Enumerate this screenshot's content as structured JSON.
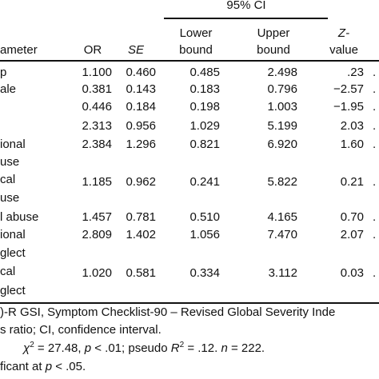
{
  "table": {
    "ci_group_label": "95% CI",
    "headers": {
      "parameter": "ameter",
      "or": "OR",
      "se": "SE",
      "lower_line1": "Lower",
      "lower_line2": "bound",
      "upper_line1": "Upper",
      "upper_line2": "bound",
      "z_line1": "Z-",
      "z_line2": "value"
    },
    "rows": [
      {
        "label": "p",
        "label2": "",
        "or": "1.100",
        "se": "0.460",
        "lower": "0.485",
        "upper": "2.498",
        "z": ".23",
        "extra": "."
      },
      {
        "label": "ale",
        "label2": "",
        "or": "0.381",
        "se": "0.143",
        "lower": "0.183",
        "upper": "0.796",
        "z": "−2.57",
        "extra": "."
      },
      {
        "label": "",
        "label2": "",
        "or": "0.446",
        "se": "0.184",
        "lower": "0.198",
        "upper": "1.003",
        "z": "−1.95",
        "extra": "."
      },
      {
        "label": "",
        "label2": "",
        "or": "2.313",
        "se": "0.956",
        "lower": "1.029",
        "upper": "5.199",
        "z": "2.03",
        "extra": "."
      },
      {
        "label": "ional",
        "label2": "use",
        "or": "2.384",
        "se": "1.296",
        "lower": "0.821",
        "upper": "6.920",
        "z": "1.60",
        "extra": "."
      },
      {
        "label": "cal",
        "label2": "use",
        "or": "1.185",
        "se": "0.962",
        "lower": "0.241",
        "upper": "5.822",
        "z": "0.21",
        "extra": "."
      },
      {
        "label": "l abuse",
        "label2": "",
        "or": "1.457",
        "se": "0.781",
        "lower": "0.510",
        "upper": "4.165",
        "z": "0.70",
        "extra": "."
      },
      {
        "label": "ional",
        "label2": "glect",
        "or": "2.809",
        "se": "1.402",
        "lower": "1.056",
        "upper": "7.470",
        "z": "2.07",
        "extra": "."
      },
      {
        "label": "cal",
        "label2": "glect",
        "or": "1.020",
        "se": "0.581",
        "lower": "0.334",
        "upper": "3.112",
        "z": "0.03",
        "extra": "."
      }
    ]
  },
  "footnotes": {
    "line1": ")-R GSI, Symptom Checklist-90 – Revised Global Severity Inde",
    "line2": "s ratio; CI, confidence interval.",
    "line3_chi": "χ",
    "line3_sup": "2",
    "line3_a": " = 27.48, ",
    "line3_p": "p",
    "line3_b": " < .01; pseudo ",
    "line3_R": "R",
    "line3_sup2": "2",
    "line3_c": " = .12. ",
    "line3_n": "n",
    "line3_d": " = 222.",
    "line4_a": "ficant at ",
    "line4_p": "p",
    "line4_b": " < .05."
  }
}
